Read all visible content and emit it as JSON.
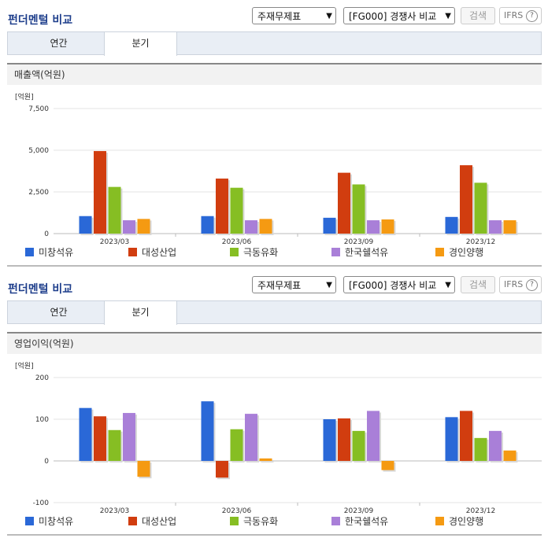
{
  "header": {
    "title": "펀더멘털 비교",
    "report_select": "주재무제표",
    "compare_select": "[FG000] 경쟁사 비교",
    "search_label": "검색",
    "ifrs_label": "IFRS",
    "help_label": "?"
  },
  "tabs": {
    "annual": "연간",
    "quarter": "분기"
  },
  "colors": {
    "미창석유": "#2a68d7",
    "대성산업": "#d13d0f",
    "극동유화": "#86be23",
    "한국쉘석유": "#a97fd8",
    "경인양행": "#f59a12"
  },
  "chart_data": [
    {
      "type": "bar",
      "title": "매출액(억원)",
      "unit": "[억원]",
      "categories": [
        "2023/03",
        "2023/06",
        "2023/09",
        "2023/12"
      ],
      "series": [
        {
          "name": "미창석유",
          "values": [
            1050,
            1050,
            950,
            1000
          ]
        },
        {
          "name": "대성산업",
          "values": [
            4950,
            3300,
            3650,
            4100
          ]
        },
        {
          "name": "극동유화",
          "values": [
            2800,
            2750,
            2950,
            3050
          ]
        },
        {
          "name": "한국쉘석유",
          "values": [
            800,
            800,
            800,
            800
          ]
        },
        {
          "name": "경인양행",
          "values": [
            880,
            880,
            850,
            800
          ]
        }
      ],
      "ylim": [
        0,
        7500
      ],
      "yticks": [
        "0",
        "2,500",
        "5,000",
        "7,500"
      ],
      "ytick_values": [
        0,
        2500,
        5000,
        7500
      ]
    },
    {
      "type": "bar",
      "title": "영업이익(억원)",
      "unit": "[억원]",
      "categories": [
        "2023/03",
        "2023/06",
        "2023/09",
        "2023/12"
      ],
      "series": [
        {
          "name": "미창석유",
          "values": [
            127,
            143,
            100,
            105
          ]
        },
        {
          "name": "대성산업",
          "values": [
            107,
            -40,
            102,
            120
          ]
        },
        {
          "name": "극동유화",
          "values": [
            74,
            76,
            72,
            55
          ]
        },
        {
          "name": "한국쉘석유",
          "values": [
            115,
            113,
            120,
            72
          ]
        },
        {
          "name": "경인양행",
          "values": [
            -38,
            6,
            -22,
            25
          ]
        }
      ],
      "ylim": [
        -100,
        200
      ],
      "yticks": [
        "-100",
        "0",
        "100",
        "200"
      ],
      "ytick_values": [
        -100,
        0,
        100,
        200
      ]
    }
  ]
}
